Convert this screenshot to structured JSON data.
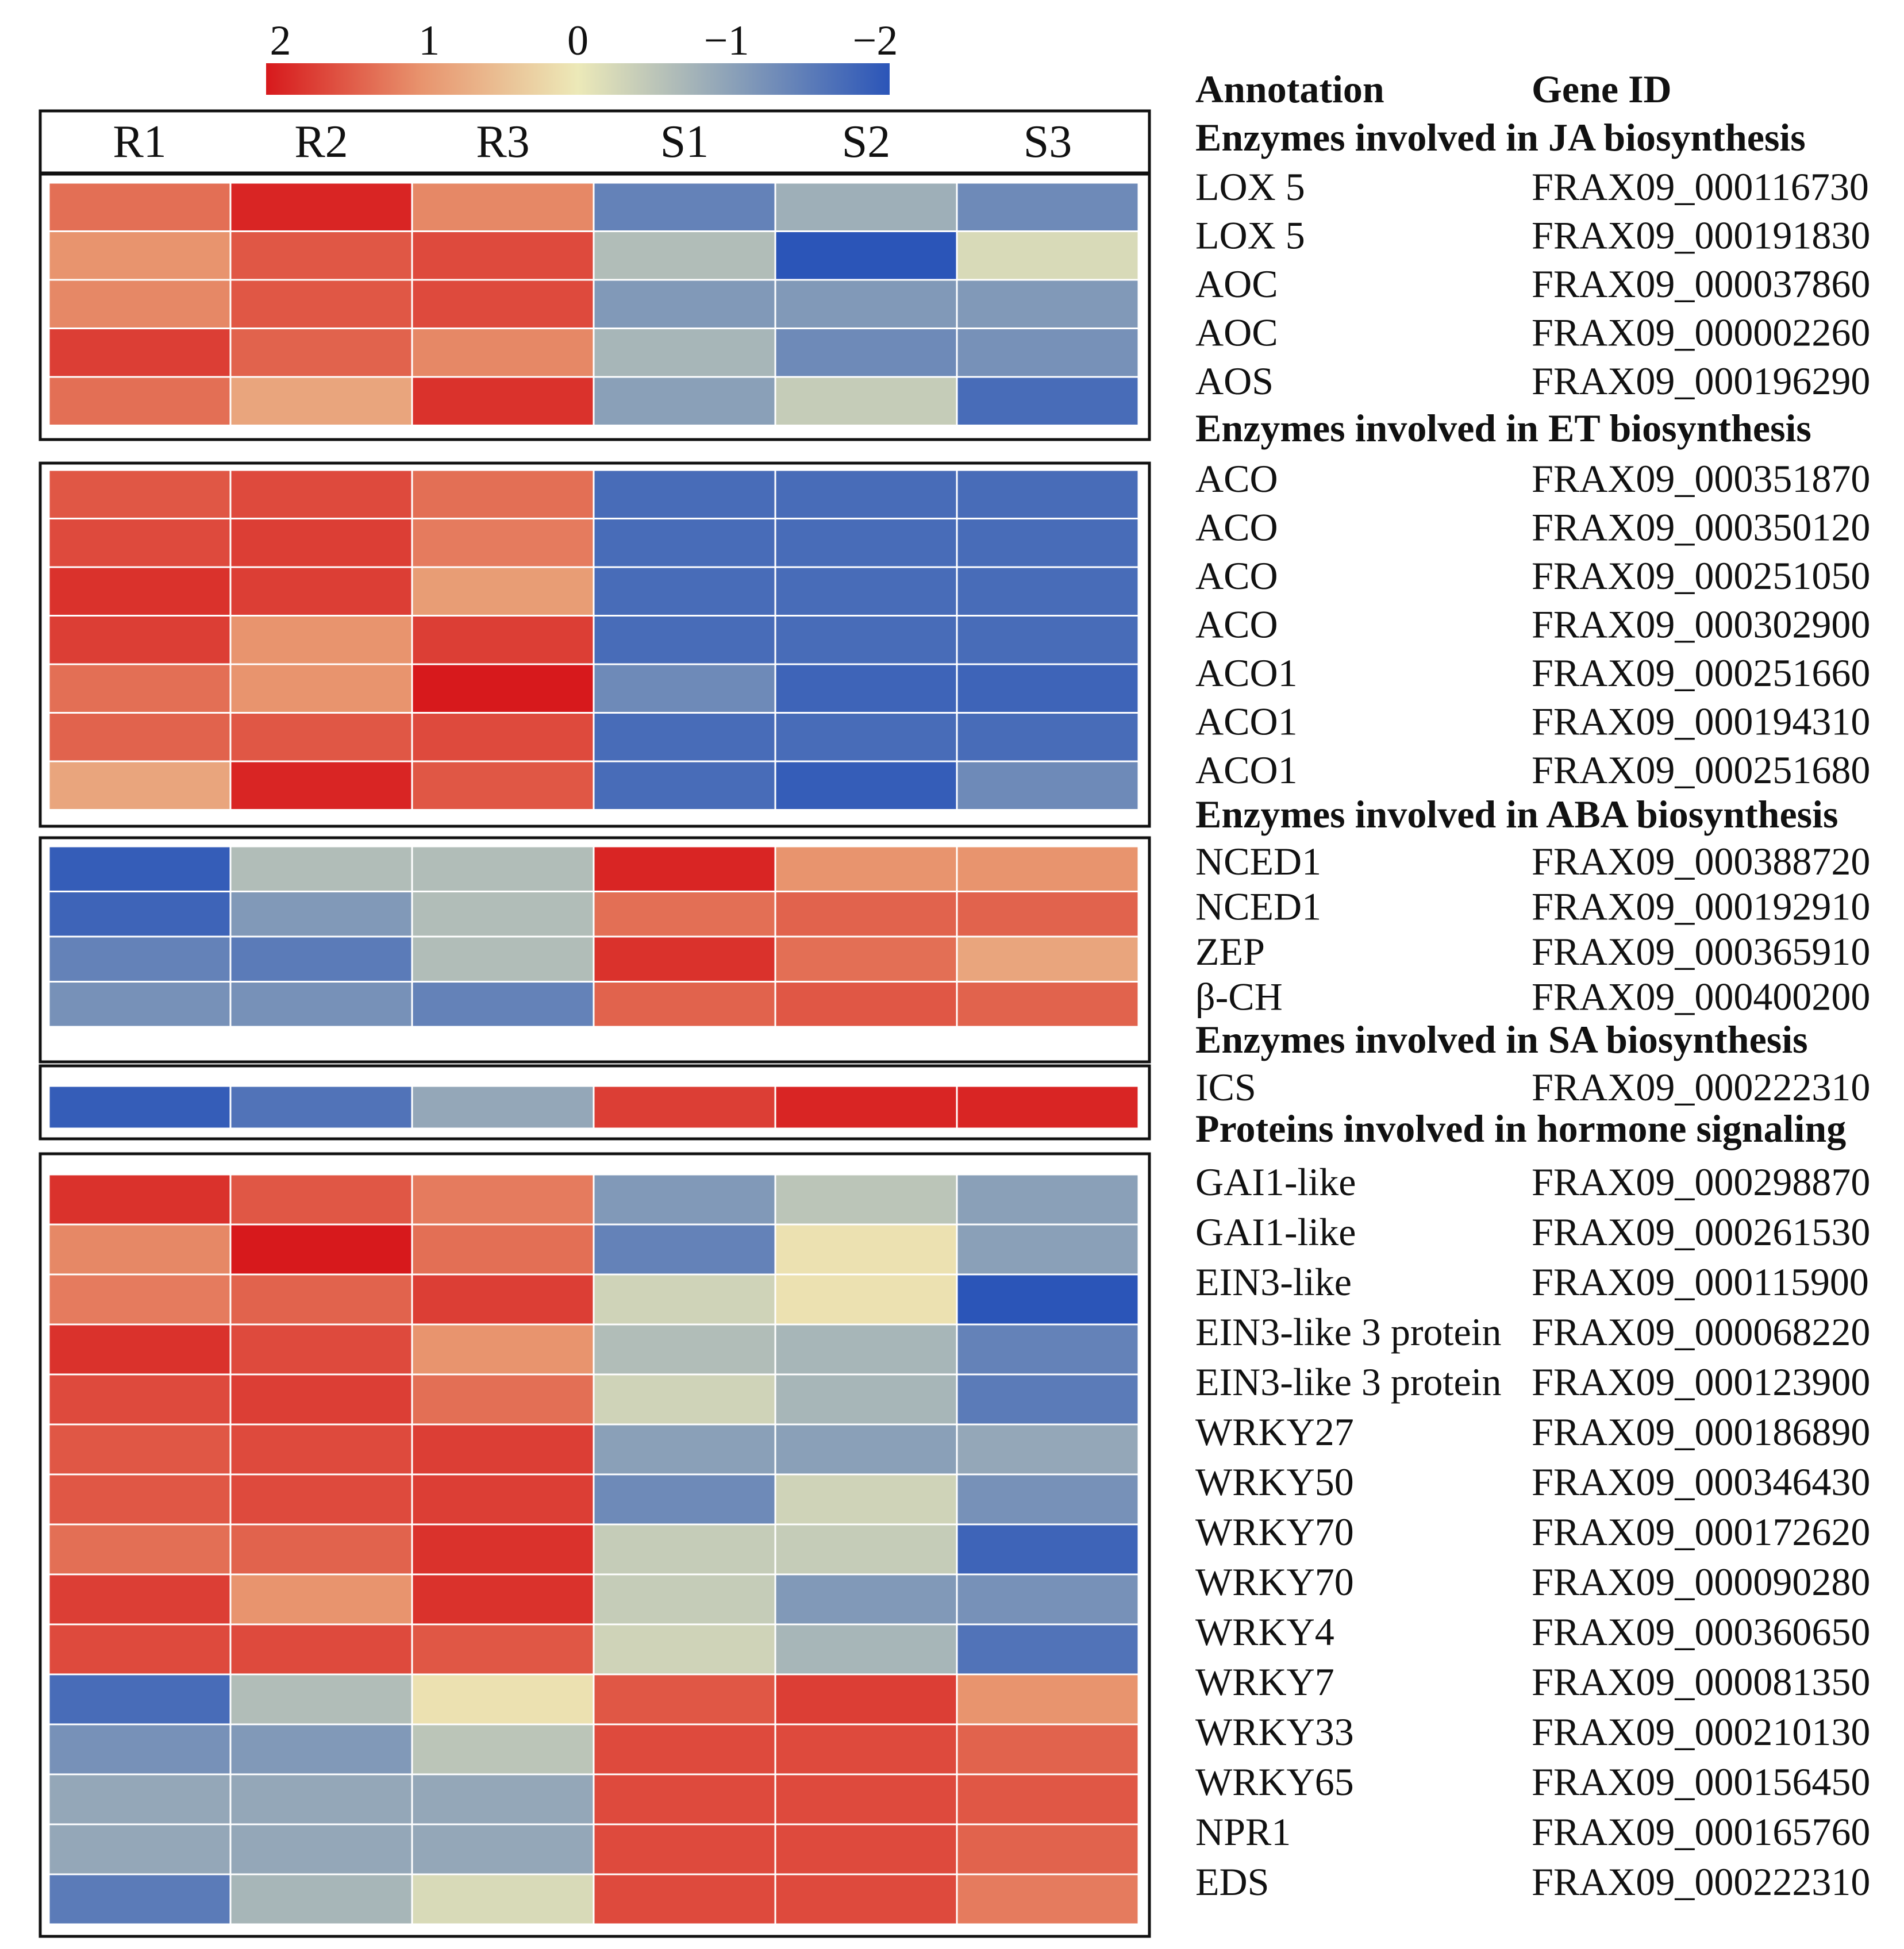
{
  "colors": {
    "high": "#d7191c",
    "mid": "#ece9b8",
    "low": "#2b55b8",
    "cell_border": "#ffffff",
    "frame": "#111111"
  },
  "colorbar": {
    "ticks": [
      "2",
      "1",
      "0",
      "−1",
      "−2"
    ],
    "range": [
      2,
      -2
    ]
  },
  "annotation_header": {
    "annotation": "Annotation",
    "gene_id": "Gene ID"
  },
  "chart_data": {
    "type": "heatmap",
    "title": "",
    "columns": [
      "R1",
      "R2",
      "R3",
      "S1",
      "S2",
      "S3"
    ],
    "value_range": [
      -2,
      2
    ],
    "groups": [
      {
        "title": "Enzymes involved in JA biosynthesis",
        "rows": [
          {
            "annotation": "LOX 5",
            "gene_id": "FRAX09_000116730",
            "values": [
              1.3,
              1.9,
              1.1,
              -1.4,
              -0.8,
              -1.3
            ]
          },
          {
            "annotation": "LOX 5",
            "gene_id": "FRAX09_000191830",
            "values": [
              1.0,
              1.5,
              1.6,
              -0.6,
              -2.0,
              -0.2
            ]
          },
          {
            "annotation": "AOC",
            "gene_id": "FRAX09_000037860",
            "values": [
              1.1,
              1.5,
              1.6,
              -1.1,
              -1.1,
              -1.1
            ]
          },
          {
            "annotation": "AOC",
            "gene_id": "FRAX09_000002260",
            "values": [
              1.7,
              1.4,
              1.1,
              -0.7,
              -1.3,
              -1.2
            ]
          },
          {
            "annotation": "AOS",
            "gene_id": "FRAX09_000196290",
            "values": [
              1.3,
              0.8,
              1.8,
              -1.0,
              -0.4,
              -1.7
            ]
          }
        ]
      },
      {
        "title": "Enzymes involved in ET biosynthesis",
        "rows": [
          {
            "annotation": "ACO",
            "gene_id": "FRAX09_000351870",
            "values": [
              1.5,
              1.6,
              1.3,
              -1.7,
              -1.7,
              -1.7
            ]
          },
          {
            "annotation": "ACO",
            "gene_id": "FRAX09_000350120",
            "values": [
              1.6,
              1.7,
              1.2,
              -1.7,
              -1.7,
              -1.7
            ]
          },
          {
            "annotation": "ACO",
            "gene_id": "FRAX09_000251050",
            "values": [
              1.8,
              1.7,
              0.9,
              -1.7,
              -1.7,
              -1.7
            ]
          },
          {
            "annotation": "ACO",
            "gene_id": "FRAX09_000302900",
            "values": [
              1.7,
              1.0,
              1.7,
              -1.7,
              -1.7,
              -1.7
            ]
          },
          {
            "annotation": "ACO1",
            "gene_id": "FRAX09_000251660",
            "values": [
              1.3,
              1.0,
              2.0,
              -1.3,
              -1.8,
              -1.8
            ]
          },
          {
            "annotation": "ACO1",
            "gene_id": "FRAX09_000194310",
            "values": [
              1.4,
              1.5,
              1.6,
              -1.7,
              -1.7,
              -1.7
            ]
          },
          {
            "annotation": "ACO1",
            "gene_id": "FRAX09_000251680",
            "values": [
              0.8,
              1.9,
              1.5,
              -1.7,
              -1.9,
              -1.3
            ]
          }
        ]
      },
      {
        "title": "Enzymes involved in ABA biosynthesis",
        "rows": [
          {
            "annotation": "NCED1",
            "gene_id": "FRAX09_000388720",
            "values": [
              -1.9,
              -0.6,
              -0.6,
              1.9,
              1.0,
              1.0
            ]
          },
          {
            "annotation": "NCED1",
            "gene_id": "FRAX09_000192910",
            "values": [
              -1.8,
              -1.1,
              -0.6,
              1.3,
              1.4,
              1.4
            ]
          },
          {
            "annotation": "ZEP",
            "gene_id": "FRAX09_000365910",
            "values": [
              -1.4,
              -1.5,
              -0.6,
              1.8,
              1.3,
              0.8
            ]
          },
          {
            "annotation": "β-CH",
            "gene_id": "FRAX09_000400200",
            "values": [
              -1.2,
              -1.2,
              -1.4,
              1.4,
              1.5,
              1.4
            ]
          }
        ]
      },
      {
        "title": "Enzymes involved in SA biosynthesis",
        "rows": [
          {
            "annotation": "ICS",
            "gene_id": "FRAX09_000222310",
            "values": [
              -1.9,
              -1.6,
              -0.9,
              1.7,
              1.9,
              1.9
            ]
          }
        ]
      },
      {
        "title": "Proteins involved in hormone signaling",
        "rows": [
          {
            "annotation": "GAI1-like",
            "gene_id": "FRAX09_000298870",
            "values": [
              1.8,
              1.5,
              1.2,
              -1.1,
              -0.5,
              -1.0
            ]
          },
          {
            "annotation": "GAI1-like",
            "gene_id": "FRAX09_000261530",
            "values": [
              1.1,
              2.0,
              1.3,
              -1.4,
              0.1,
              -1.0
            ]
          },
          {
            "annotation": "EIN3-like",
            "gene_id": "FRAX09_000115900",
            "values": [
              1.2,
              1.4,
              1.7,
              -0.3,
              0.1,
              -2.0
            ]
          },
          {
            "annotation": "EIN3-like 3 protein",
            "gene_id": "FRAX09_000068220",
            "values": [
              1.8,
              1.6,
              1.0,
              -0.6,
              -0.7,
              -1.4
            ]
          },
          {
            "annotation": "EIN3-like 3 protein",
            "gene_id": "FRAX09_000123900",
            "values": [
              1.6,
              1.7,
              1.3,
              -0.3,
              -0.7,
              -1.5
            ]
          },
          {
            "annotation": "WRKY27",
            "gene_id": "FRAX09_000186890",
            "values": [
              1.5,
              1.6,
              1.7,
              -1.0,
              -1.0,
              -0.9
            ]
          },
          {
            "annotation": "WRKY50",
            "gene_id": "FRAX09_000346430",
            "values": [
              1.5,
              1.6,
              1.7,
              -1.3,
              -0.3,
              -1.2
            ]
          },
          {
            "annotation": "WRKY70",
            "gene_id": "FRAX09_000172620",
            "values": [
              1.3,
              1.4,
              1.8,
              -0.4,
              -0.4,
              -1.8
            ]
          },
          {
            "annotation": "WRKY70",
            "gene_id": "FRAX09_000090280",
            "values": [
              1.7,
              1.0,
              1.8,
              -0.4,
              -1.1,
              -1.2
            ]
          },
          {
            "annotation": "WRKY4",
            "gene_id": "FRAX09_000360650",
            "values": [
              1.6,
              1.6,
              1.5,
              -0.3,
              -0.7,
              -1.6
            ]
          },
          {
            "annotation": "WRKY7",
            "gene_id": "FRAX09_000081350",
            "values": [
              -1.7,
              -0.6,
              0.1,
              1.5,
              1.7,
              1.0
            ]
          },
          {
            "annotation": "WRKY33",
            "gene_id": "FRAX09_000210130",
            "values": [
              -1.2,
              -1.1,
              -0.5,
              1.6,
              1.6,
              1.4
            ]
          },
          {
            "annotation": "WRKY65",
            "gene_id": "FRAX09_000156450",
            "values": [
              -0.9,
              -0.9,
              -0.9,
              1.6,
              1.6,
              1.5
            ]
          },
          {
            "annotation": "NPR1",
            "gene_id": "FRAX09_000165760",
            "values": [
              -0.9,
              -0.9,
              -0.9,
              1.6,
              1.6,
              1.4
            ]
          },
          {
            "annotation": "EDS",
            "gene_id": "FRAX09_000222310",
            "values": [
              -1.5,
              -0.7,
              -0.2,
              1.6,
              1.6,
              1.2
            ]
          }
        ]
      }
    ]
  }
}
